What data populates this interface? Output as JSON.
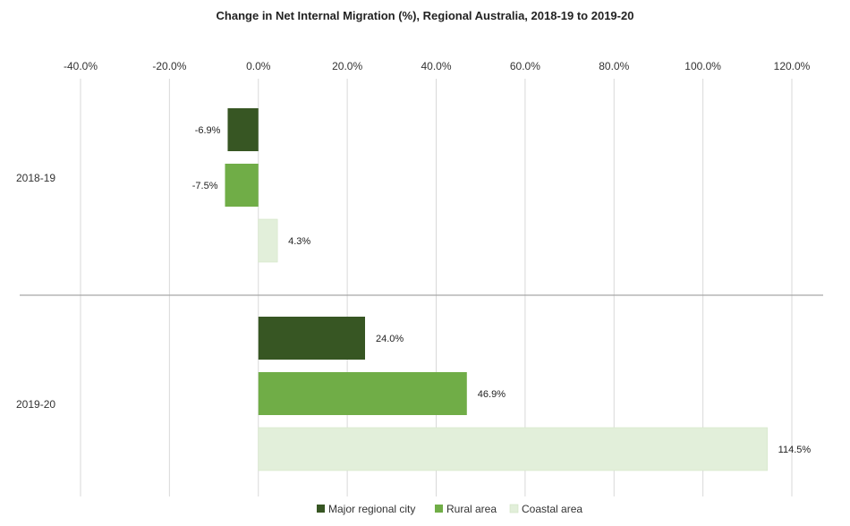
{
  "chart_data": {
    "type": "bar",
    "orientation": "horizontal",
    "title": "Change in Net Internal Migration (%), Regional Australia, 2018-19 to 2019-20",
    "categories": [
      "2018-19",
      "2019-20"
    ],
    "series": [
      {
        "name": "Major regional city",
        "color": "#375623",
        "values": [
          -6.9,
          24.0
        ],
        "labels": [
          "-6.9%",
          "24.0%"
        ]
      },
      {
        "name": "Rural area",
        "color": "#70ad47",
        "values": [
          -7.5,
          46.9
        ],
        "labels": [
          "-7.5%",
          "46.9%"
        ]
      },
      {
        "name": "Coastal area",
        "color": "#e2efda",
        "values": [
          4.3,
          114.5
        ],
        "labels": [
          "4.3%",
          "114.5%"
        ]
      }
    ],
    "xlim": [
      -40,
      120
    ],
    "xticks": [
      -40,
      -20,
      0,
      20,
      40,
      60,
      80,
      100,
      120
    ],
    "xtick_labels": [
      "-40.0%",
      "-20.0%",
      "0.0%",
      "20.0%",
      "40.0%",
      "60.0%",
      "80.0%",
      "100.0%",
      "120.0%"
    ],
    "x_axis_position": "top",
    "grid": true,
    "legend_position": "bottom"
  }
}
